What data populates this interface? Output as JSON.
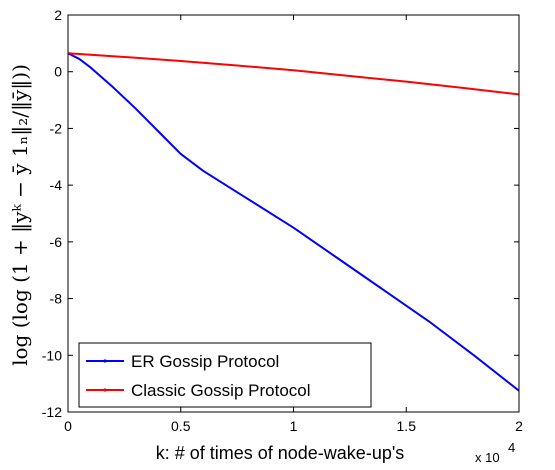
{
  "chart_data": {
    "type": "line",
    "xlabel": "k: # of times of node-wake-up's",
    "ylabel": "log  (log  (1 + ‖yᵏ − ȳ 1ₙ‖₂/‖ȳ‖))",
    "x_multiplier": "x 10",
    "x_multiplier_exp": "4",
    "xlim": [
      0,
      2
    ],
    "ylim": [
      -12,
      2
    ],
    "xticks": [
      0,
      0.5,
      1,
      1.5,
      2
    ],
    "xtick_labels": [
      "0",
      "0.5",
      "1",
      "1.5",
      "2"
    ],
    "yticks": [
      -12,
      -10,
      -8,
      -6,
      -4,
      -2,
      0,
      2
    ],
    "ytick_labels": [
      "-12",
      "-10",
      "-8",
      "-6",
      "-4",
      "-2",
      "0",
      "2"
    ],
    "grid": false,
    "legend_position": "bottom-left",
    "series": [
      {
        "name": "ER Gossip Protocol",
        "color": "#0000ff",
        "x": [
          0,
          0.05,
          0.1,
          0.15,
          0.2,
          0.3,
          0.4,
          0.5,
          0.6,
          0.8,
          1.0,
          1.2,
          1.4,
          1.6,
          1.8,
          2.0
        ],
        "y": [
          0.65,
          0.45,
          0.15,
          -0.2,
          -0.55,
          -1.3,
          -2.1,
          -2.9,
          -3.5,
          -4.5,
          -5.5,
          -6.6,
          -7.7,
          -8.8,
          -10.0,
          -11.25
        ]
      },
      {
        "name": "Classic Gossip Protocol",
        "color": "#ff0000",
        "x": [
          0,
          0.25,
          0.5,
          0.75,
          1.0,
          1.25,
          1.5,
          1.75,
          2.0
        ],
        "y": [
          0.65,
          0.52,
          0.38,
          0.22,
          0.05,
          -0.15,
          -0.35,
          -0.57,
          -0.8
        ]
      }
    ]
  }
}
